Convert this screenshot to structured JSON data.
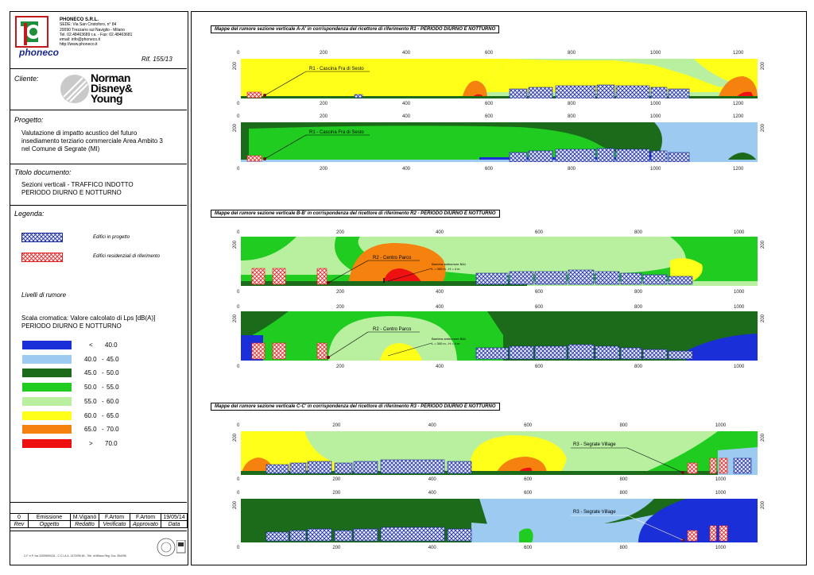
{
  "company": {
    "logo_text": "phoneco",
    "name": "PHONECO S.R.L.",
    "address1": "SEDE: Via San Cristoforo, n° 84",
    "address2": "20090 Trezzano sul Naviglio - Milano",
    "phone": "Tel. 02.48463689 r.a. - Fax: 02.48463681",
    "email": "email: info@phoneco.it",
    "web": "http://www.phoneco.it"
  },
  "ref": "Rif. 155/13",
  "client": {
    "label": "Cliente:",
    "logo_line1": "Norman",
    "logo_line2": "Disney&",
    "logo_line3": "Young"
  },
  "project": {
    "label": "Progetto:",
    "line1": "Valutazione di impatto acustico del futuro",
    "line2": "insediamento terziario commerciale Area Ambito 3",
    "line3": "nel Comune di Segrate (MI)"
  },
  "doc_title": {
    "label": "Titolo documento:",
    "line1": "Sezioni verticali - TRAFFICO INDOTTO",
    "line2": "PERIODO DIURNO E NOTTURNO"
  },
  "legend": {
    "label": "Legenda:",
    "item1": "Edifici in progetto",
    "item2": "Edifici residenziali di riferimento",
    "levels_title": "Livelli di rumore",
    "scale_line1": "Scala cromatica: Valore calcolato di Lps [dB(A)]",
    "scale_line2": "PERIODO DIURNO E NOTTURNO",
    "bands": [
      {
        "op": "<",
        "a": "40.0",
        "b": "",
        "color": "#1a2fd8"
      },
      {
        "op": "",
        "a": "40.0",
        "b": "45.0",
        "color": "#9ccaf0"
      },
      {
        "op": "",
        "a": "45.0",
        "b": "50.0",
        "color": "#1b6b1b"
      },
      {
        "op": "",
        "a": "50.0",
        "b": "55.0",
        "color": "#20cc20"
      },
      {
        "op": "",
        "a": "55.0",
        "b": "60.0",
        "color": "#b8f0a0"
      },
      {
        "op": "",
        "a": "60.0",
        "b": "65.0",
        "color": "#ffff1a"
      },
      {
        "op": "",
        "a": "65.0",
        "b": "70.0",
        "color": "#f5820f"
      },
      {
        "op": ">",
        "a": "70.0",
        "b": "",
        "color": "#ee1111"
      }
    ],
    "dash": "-"
  },
  "revisions": {
    "row": [
      "0",
      "Emissione",
      "M.Viganò",
      "F.Artom",
      "F.Artom",
      "19/05/14"
    ],
    "header": [
      "Rev",
      "Oggetto",
      "Redatto",
      "Verificato",
      "Approvato",
      "Data"
    ]
  },
  "footer": "C.F. e P. Iva 11529690151 - C.C.I.A.A. 1472095 MI - Trib. di Milano Reg. Soc. 354096",
  "panels": [
    {
      "title": "Mappe del rumore sezione verticale A-A' in corrispondenza del ricettore di riferimento R1 - PERIODO DIURNO E NOTTURNO",
      "ticks": [
        "0",
        "200",
        "400",
        "600",
        "800",
        "1000",
        "1200"
      ],
      "yaxis": "200",
      "label1": "R1 - Cascina Fra di Sesto",
      "label2": "R1 - Cascina Fra di Sesto"
    },
    {
      "title": "Mappe del rumore sezione verticale B-B' in corrispondenza del ricettore di riferimento R2 - PERIODO DIURNO E NOTTURNO",
      "ticks": [
        "0",
        "200",
        "400",
        "600",
        "800",
        "1000"
      ],
      "yaxis": "200",
      "label1": "R2 - Centro Parco",
      "label2": "R2 - Centro Parco",
      "barrier1": "Barriera antirumore BA1",
      "barrier2": "L = 300 m - H = 4 m"
    },
    {
      "title": "Mappe del rumore sezione verticale C-C' in corrispondenza del ricettore di riferimento R3 - PERIODO DIURNO E NOTTURNO",
      "ticks": [
        "0",
        "200",
        "400",
        "600",
        "800",
        "1000"
      ],
      "yaxis": "200",
      "label1": "R3 - Segrate Village",
      "label2": "R3 - Segrate Village"
    }
  ]
}
